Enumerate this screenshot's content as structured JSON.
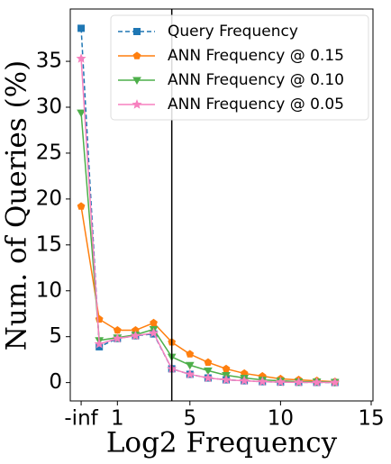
{
  "chart_data": {
    "type": "line",
    "xlabel": "Log2 Frequency",
    "ylabel": "Num. of Queries (%)",
    "x": [
      -1,
      0,
      1,
      2,
      3,
      4,
      5,
      6,
      7,
      8,
      9,
      10,
      11,
      12,
      13
    ],
    "series": [
      {
        "name": "Query Frequency",
        "color": "#1f77b4",
        "marker": "square",
        "dashed": true,
        "values": [
          38.6,
          3.9,
          4.8,
          5.1,
          5.3,
          1.5,
          0.9,
          0.5,
          0.3,
          0.2,
          0.1,
          0.05,
          0.03,
          0.02,
          0.01
        ]
      },
      {
        "name": "ANN Frequency @ 0.15",
        "color": "#ff7f0e",
        "marker": "pentagon",
        "values": [
          19.2,
          6.9,
          5.7,
          5.7,
          6.5,
          4.4,
          3.1,
          2.2,
          1.5,
          1.0,
          0.7,
          0.4,
          0.3,
          0.2,
          0.1
        ]
      },
      {
        "name": "ANN Frequency @ 0.10",
        "color": "#4daf4a",
        "marker": "triangle",
        "values": [
          29.4,
          4.6,
          4.9,
          5.2,
          5.8,
          2.8,
          1.9,
          1.3,
          0.8,
          0.5,
          0.3,
          0.2,
          0.1,
          0.1,
          0.05
        ]
      },
      {
        "name": "ANN Frequency @ 0.05",
        "color": "#f781bf",
        "marker": "star",
        "values": [
          35.3,
          4.2,
          4.8,
          5.1,
          5.4,
          1.5,
          0.9,
          0.5,
          0.3,
          0.2,
          0.1,
          0.05,
          0.03,
          0.02,
          0.01
        ]
      }
    ],
    "vline_x": 4,
    "xlim": [
      -1.6,
      15.1
    ],
    "ylim": [
      -2,
      40.7
    ],
    "xticks": [
      {
        "value": -1,
        "label": "-inf"
      },
      1,
      5,
      10,
      15
    ],
    "yticks": [
      0,
      5,
      10,
      15,
      20,
      25,
      30,
      35
    ],
    "legend": "upper right"
  }
}
